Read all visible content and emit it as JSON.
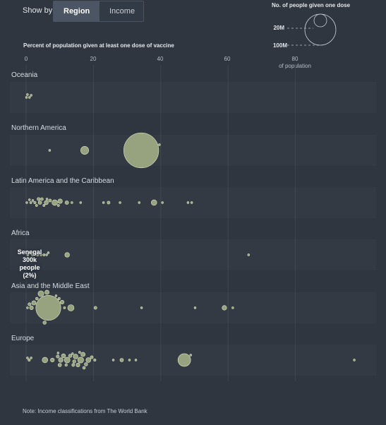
{
  "controls": {
    "show_by_label": "Show by",
    "options": [
      "Region",
      "Income"
    ],
    "selected": "Region"
  },
  "size_legend": {
    "title": "No. of people given one dose",
    "labels": [
      "20M",
      "100M"
    ]
  },
  "annotation": {
    "name": "Senegal",
    "people": "300k people",
    "pct": "(2%)"
  },
  "note": "Note: Income classifications from The World Bank",
  "colors": {
    "background": "#2f3640",
    "bubble_fill": "#a9b58a",
    "bubble_stroke": "#dfe6c5",
    "gridline": "#3c4450"
  },
  "chart_data": {
    "type": "scatter",
    "title": "",
    "xlabel": "Percent of population given at least one dose of vaccine",
    "x_ticks": [
      "0",
      "20",
      "40",
      "60",
      "80"
    ],
    "x_tick_sub": "of population",
    "xlim": [
      0,
      100
    ],
    "grid": true,
    "size_encoding": "No. of people given one dose (millions)",
    "regions": [
      {
        "name": "Oceania",
        "points": [
          [
            0.1,
            0.05
          ],
          [
            0.4,
            0.05
          ],
          [
            1.0,
            0.08
          ],
          [
            1.5,
            0.03
          ]
        ]
      },
      {
        "name": "Northern America",
        "points": [
          [
            7.0,
            0.1
          ],
          [
            17.4,
            6.6
          ],
          [
            34.2,
            127.0
          ],
          [
            39.6,
            0.05
          ]
        ]
      },
      {
        "name": "Latin America and the Caribbean",
        "points": [
          [
            0.2,
            0.1
          ],
          [
            1.0,
            0.3
          ],
          [
            1.4,
            0.5
          ],
          [
            2.0,
            0.4
          ],
          [
            2.6,
            0.6
          ],
          [
            3.1,
            0.5
          ],
          [
            3.7,
            1.0
          ],
          [
            4.1,
            1.3
          ],
          [
            4.7,
            0.8
          ],
          [
            5.3,
            0.5
          ],
          [
            6.2,
            0.3
          ],
          [
            6.0,
            1.8
          ],
          [
            7.1,
            0.9
          ],
          [
            8.5,
            3.2
          ],
          [
            9.6,
            0.5
          ],
          [
            10.1,
            2.1
          ],
          [
            12.1,
            1.4
          ],
          [
            13.6,
            0.2
          ],
          [
            16.2,
            0.1
          ],
          [
            23.0,
            0.3
          ],
          [
            24.5,
            0.9
          ],
          [
            27.9,
            0.1
          ],
          [
            33.6,
            0.2
          ],
          [
            38.0,
            3.2
          ],
          [
            48.1,
            0.2
          ],
          [
            40.5,
            0.1
          ],
          [
            49.2,
            0.1
          ]
        ]
      },
      {
        "name": "Africa",
        "points": [
          [
            0.5,
            0.4
          ],
          [
            1.0,
            0.3
          ],
          [
            1.9,
            0.3
          ],
          [
            2.5,
            0.3
          ],
          [
            3.4,
            0.5
          ],
          [
            4.4,
            0.4
          ],
          [
            5.3,
            0.5
          ],
          [
            6.1,
            0.3
          ],
          [
            6.6,
            0.2
          ],
          [
            12.2,
            2.3
          ],
          [
            66.1,
            0.05
          ]
        ]
      },
      {
        "name": "Asia and the Middle East",
        "points": [
          [
            0.4,
            0.4
          ],
          [
            1.0,
            1.0
          ],
          [
            1.6,
            1.5
          ],
          [
            2.3,
            2.0
          ],
          [
            3.2,
            0.8
          ],
          [
            4.4,
            3.5
          ],
          [
            5.5,
            1.2
          ],
          [
            6.2,
            2.0
          ],
          [
            6.6,
            65.0
          ],
          [
            9.8,
            0.6
          ],
          [
            10.7,
            1.6
          ],
          [
            13.3,
            4.2
          ],
          [
            20.6,
            0.9
          ],
          [
            34.3,
            0.2
          ],
          [
            50.2,
            0.1
          ],
          [
            58.9,
            2.2
          ],
          [
            61.4,
            0.3
          ],
          [
            8.9,
            0.2
          ],
          [
            11.4,
            0.5
          ]
        ]
      },
      {
        "name": "Europe",
        "points": [
          [
            0.4,
            0.1
          ],
          [
            0.9,
            0.6
          ],
          [
            1.5,
            0.3
          ],
          [
            5.6,
            3.2
          ],
          [
            7.8,
            1.6
          ],
          [
            9.4,
            1.0
          ],
          [
            10.3,
            2.2
          ],
          [
            11.1,
            1.8
          ],
          [
            12.2,
            3.4
          ],
          [
            13.1,
            1.2
          ],
          [
            14.0,
            0.9
          ],
          [
            14.7,
            2.4
          ],
          [
            15.4,
            1.6
          ],
          [
            16.2,
            3.7
          ],
          [
            16.9,
            2.0
          ],
          [
            17.8,
            1.2
          ],
          [
            18.5,
            2.4
          ],
          [
            19.5,
            0.9
          ],
          [
            20.4,
            0.6
          ],
          [
            11.9,
            0.7
          ],
          [
            13.8,
            0.4
          ],
          [
            10.0,
            1.3
          ],
          [
            15.9,
            0.5
          ],
          [
            14.3,
            1.1
          ],
          [
            17.2,
            0.8
          ],
          [
            9.5,
            0.2
          ],
          [
            28.4,
            1.3
          ],
          [
            30.7,
            0.3
          ],
          [
            32.6,
            0.2
          ],
          [
            47.0,
            16.8
          ],
          [
            48.9,
            0.2
          ],
          [
            97.5,
            0.05
          ],
          [
            25.9,
            0.3
          ]
        ]
      }
    ]
  }
}
